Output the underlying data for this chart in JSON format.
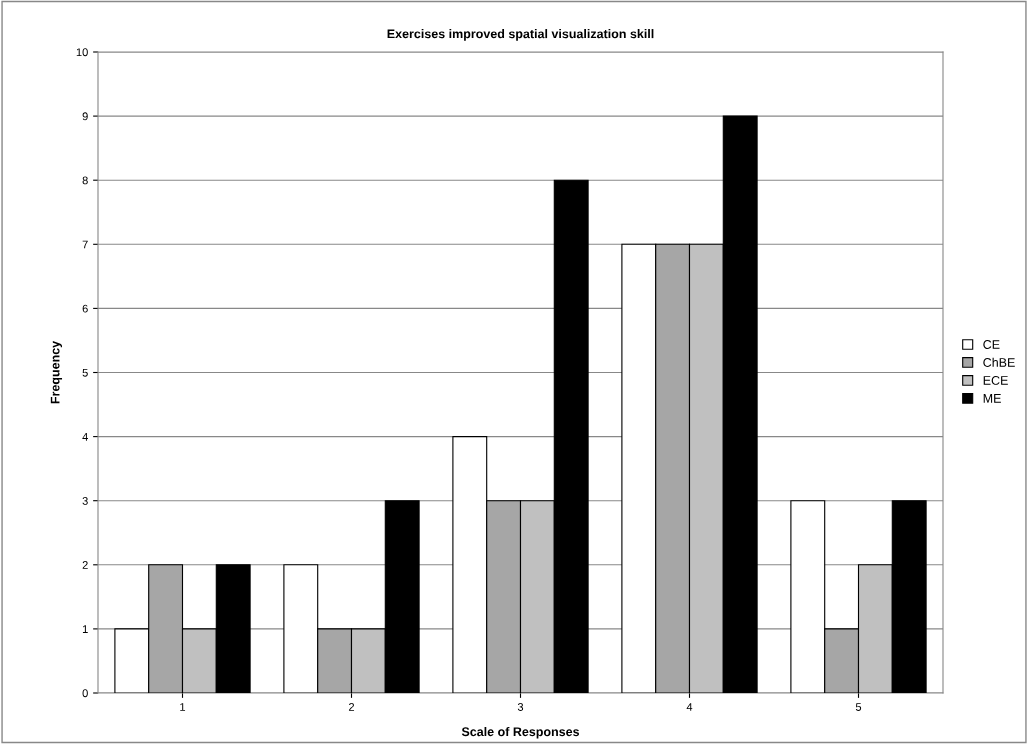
{
  "chart_data": {
    "type": "bar",
    "title": "Exercises improved spatial visualization skill",
    "xlabel": "Scale of Responses",
    "ylabel": "Frequency",
    "categories": [
      "1",
      "2",
      "3",
      "4",
      "5"
    ],
    "series": [
      {
        "name": "CE",
        "color": "#ffffff",
        "values": [
          1,
          2,
          4,
          7,
          3
        ]
      },
      {
        "name": "ChBE",
        "color": "#a6a6a6",
        "values": [
          2,
          1,
          3,
          7,
          1
        ]
      },
      {
        "name": "ECE",
        "color": "#c0c0c0",
        "values": [
          1,
          1,
          3,
          7,
          2
        ]
      },
      {
        "name": "ME",
        "color": "#000000",
        "values": [
          2,
          3,
          8,
          9,
          3
        ]
      }
    ],
    "ylim": [
      0,
      10
    ],
    "yticks": [
      0,
      1,
      2,
      3,
      4,
      5,
      6,
      7,
      8,
      9,
      10
    ],
    "grid": "y",
    "legend": "right"
  }
}
